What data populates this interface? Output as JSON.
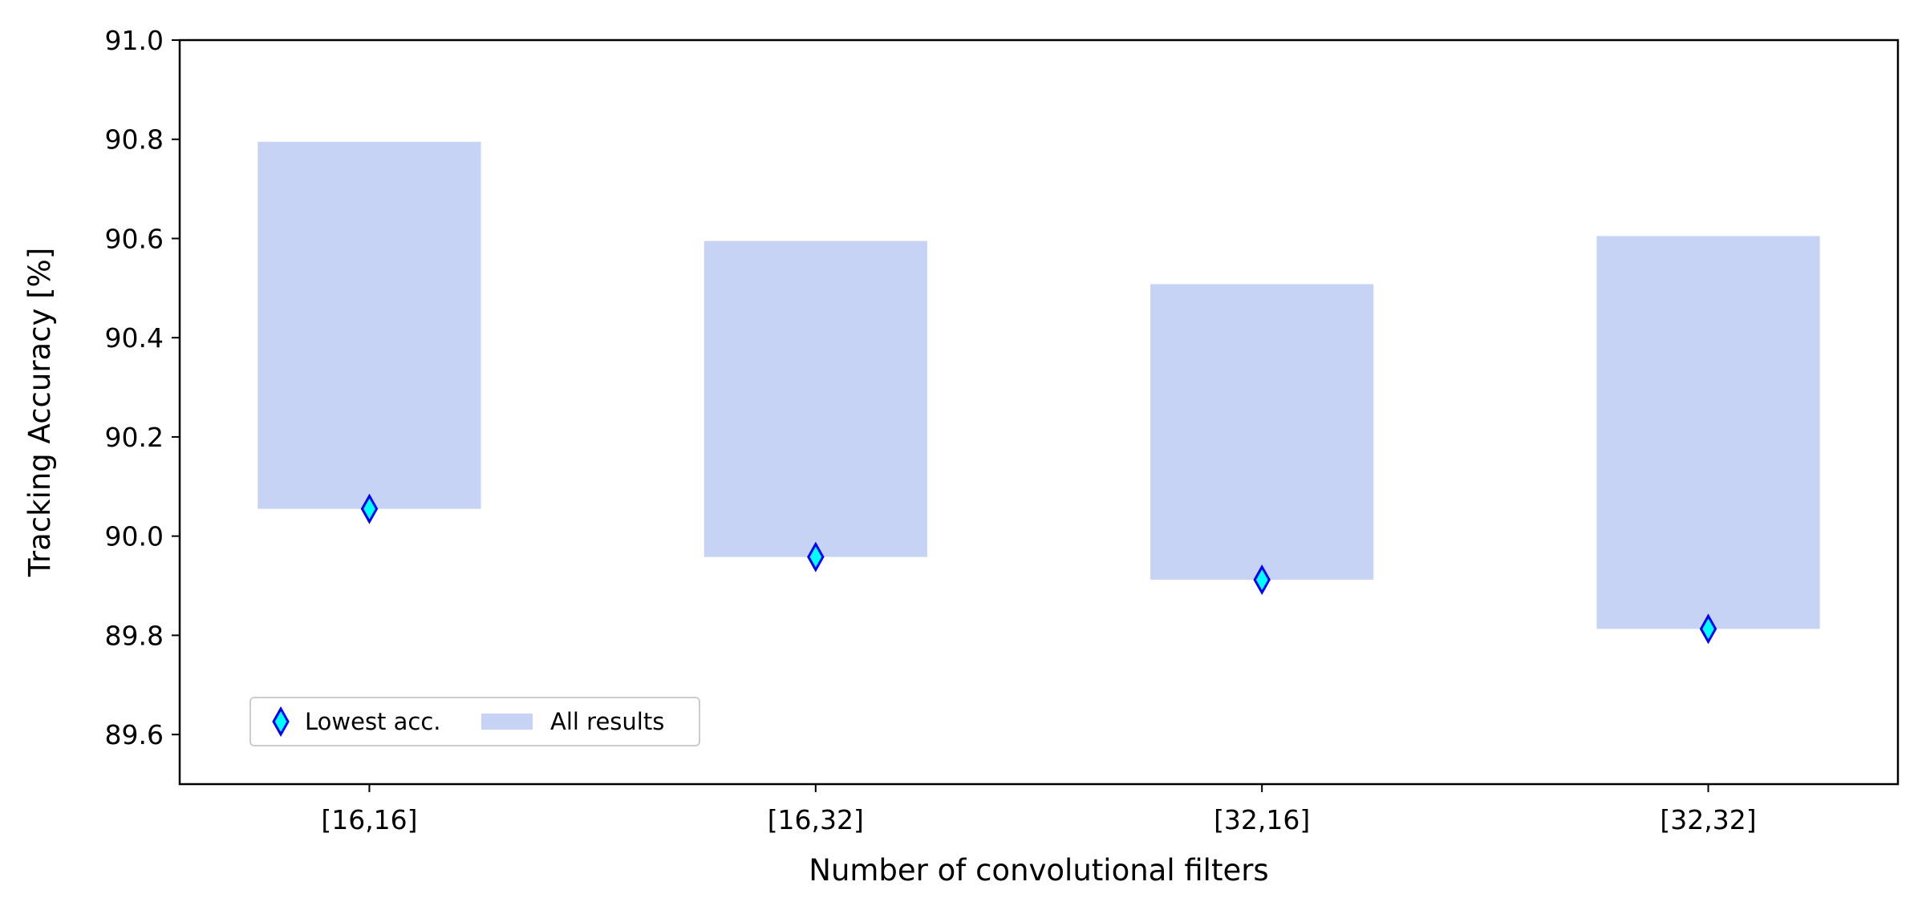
{
  "chart_data": {
    "type": "bar",
    "title": "",
    "xlabel": "Number of convolutional filters",
    "ylabel": "Tracking Accuracy [%]",
    "ylim": [
      89.5,
      91.0
    ],
    "yticks": [
      "89.6",
      "89.8",
      "90.0",
      "90.2",
      "90.4",
      "90.6",
      "90.8",
      "91.0"
    ],
    "categories": [
      "[16,16]",
      "[16,32]",
      "[32,16]",
      "[32,32]"
    ],
    "series": [
      {
        "name": "All results",
        "kind": "range-bar",
        "low": [
          90.055,
          89.958,
          89.912,
          89.813
        ],
        "high": [
          90.795,
          90.595,
          90.508,
          90.605
        ],
        "color": "#c7d3f5"
      },
      {
        "name": "Lowest acc.",
        "kind": "marker",
        "marker": "thin-diamond",
        "values": [
          90.055,
          89.958,
          89.912,
          89.813
        ],
        "face_color": "#00ffff",
        "edge_color": "#0000ff"
      }
    ],
    "legend": {
      "position": "lower-left",
      "entries": [
        "Lowest acc.",
        "All results"
      ]
    },
    "grid": false
  }
}
